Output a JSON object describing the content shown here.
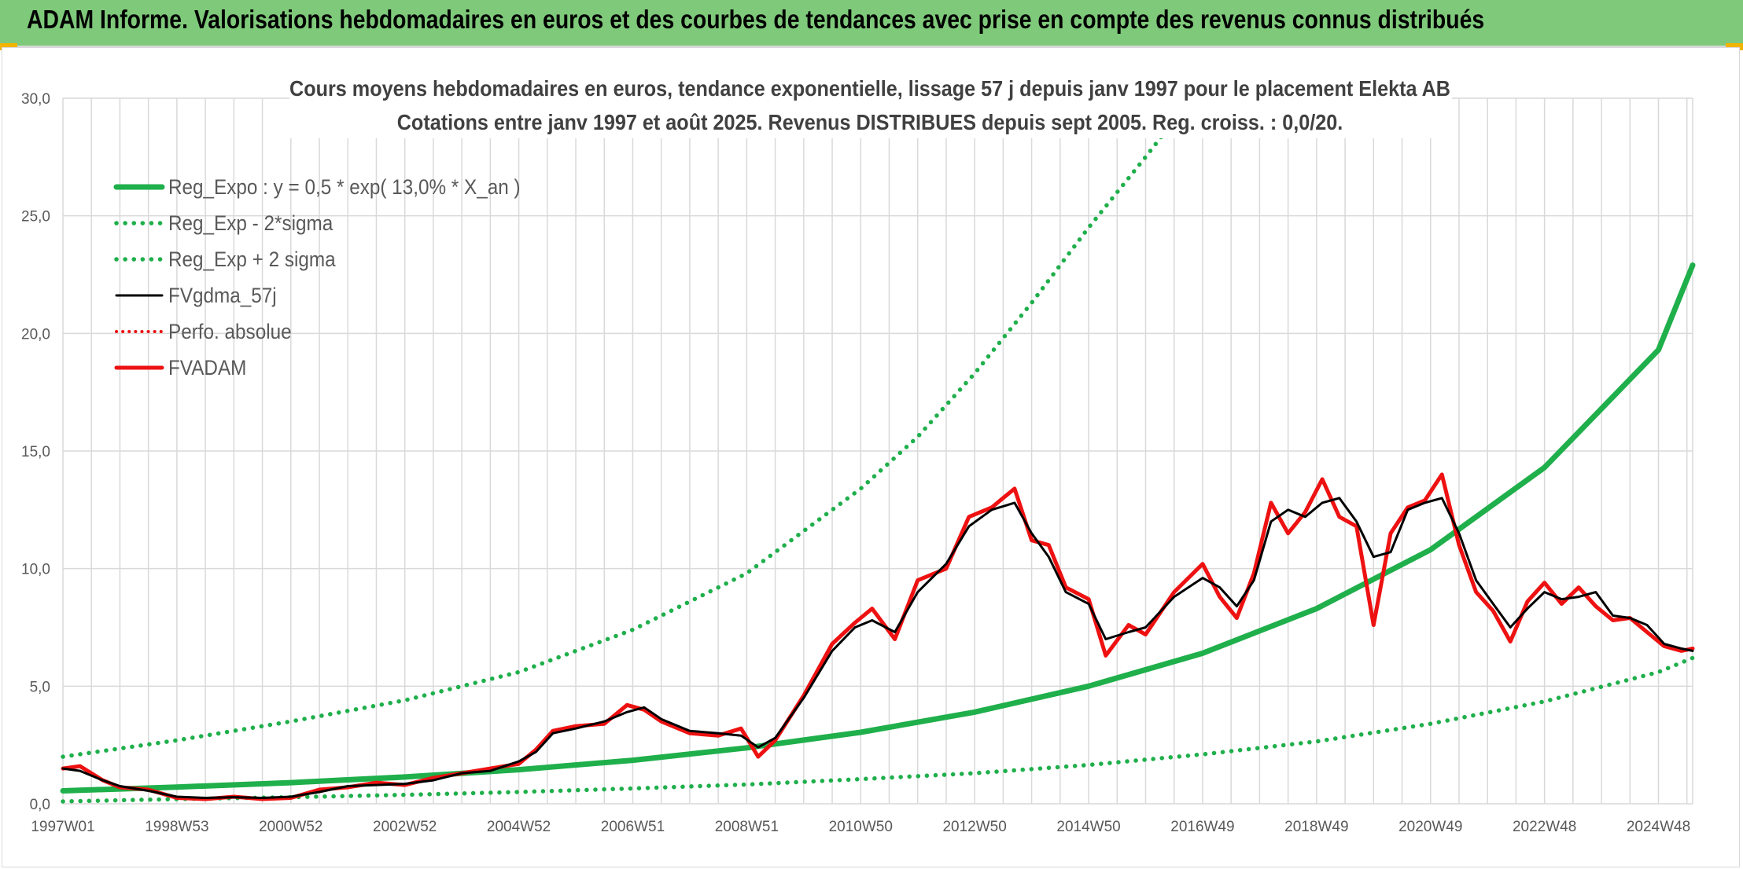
{
  "header": {
    "title": "ADAM Informe. Valorisations hebdomadaires en euros et des courbes de tendances avec prise en compte des revenus connus distribués"
  },
  "colors": {
    "banner": "#7ec97a",
    "reg_green": "#1faf4b",
    "sigma_green": "#1faf4b",
    "gdma_black": "#000000",
    "adam_red": "#ee1111"
  },
  "chart_data": {
    "type": "line",
    "title": "Cours moyens hebdomadaires en euros, tendance exponentielle, lissage 57 j depuis janv 1997 pour le placement Elekta AB",
    "subtitle": "Cotations entre janv 1997 et août 2025. Revenus DISTRIBUES depuis sept 2005. Reg. croiss. : 0,0/20.",
    "xlabel": "",
    "ylabel": "",
    "xlim": [
      1997.0,
      2025.6
    ],
    "ylim": [
      0,
      30
    ],
    "yticks": [
      0,
      5,
      10,
      15,
      20,
      25,
      30
    ],
    "ytick_labels": [
      "0,0",
      "5,0",
      "10,0",
      "15,0",
      "20,0",
      "25,0",
      "30,0"
    ],
    "xtick_labels": [
      "1997W01",
      "1998W53",
      "2000W52",
      "2002W52",
      "2004W52",
      "2006W51",
      "2008W51",
      "2010W50",
      "2012W50",
      "2014W50",
      "2016W49",
      "2018W49",
      "2020W49",
      "2022W48",
      "2024W48"
    ],
    "xtick_years": [
      1997.0,
      1999.0,
      2001.0,
      2003.0,
      2005.0,
      2007.0,
      2009.0,
      2011.0,
      2013.0,
      2015.0,
      2017.0,
      2019.0,
      2021.0,
      2023.0,
      2025.0
    ],
    "grid": true,
    "legend_position": "top-left",
    "series": [
      {
        "name": "Reg_Expo : y = 0,5 * exp( 13,0% *  X_an )",
        "style": "solid-thick",
        "x": [
          1997.0,
          1999.0,
          2001.0,
          2003.0,
          2005.0,
          2007.0,
          2009.0,
          2011.0,
          2013.0,
          2015.0,
          2017.0,
          2019.0,
          2021.0,
          2023.0,
          2025.0,
          2025.6
        ],
        "y": [
          0.55,
          0.71,
          0.9,
          1.14,
          1.45,
          1.85,
          2.38,
          3.04,
          3.9,
          5.0,
          6.4,
          8.3,
          10.8,
          14.3,
          19.3,
          22.9
        ]
      },
      {
        "name": "Reg_Exp - 2*sigma",
        "style": "dotted",
        "x": [
          1997.0,
          1999.0,
          2001.0,
          2003.0,
          2005.0,
          2007.0,
          2009.0,
          2011.0,
          2013.0,
          2015.0,
          2017.0,
          2019.0,
          2021.0,
          2023.0,
          2025.0,
          2025.6
        ],
        "y": [
          0.1,
          0.2,
          0.28,
          0.38,
          0.5,
          0.65,
          0.82,
          1.05,
          1.3,
          1.65,
          2.1,
          2.65,
          3.4,
          4.35,
          5.6,
          6.2
        ]
      },
      {
        "name": "Reg_Exp + 2 sigma",
        "style": "dotted",
        "x": [
          1997.0,
          1999.0,
          2001.0,
          2003.0,
          2005.0,
          2007.0,
          2009.0,
          2011.0,
          2012.0,
          2013.0,
          2014.0,
          2015.0,
          2016.0,
          2016.8
        ],
        "y": [
          2.0,
          2.7,
          3.5,
          4.4,
          5.6,
          7.4,
          9.8,
          13.4,
          15.6,
          18.3,
          21.3,
          24.5,
          27.5,
          30.0
        ]
      },
      {
        "name": "FVgdma_57j",
        "style": "solid-thin",
        "x": [
          1997.0,
          1997.3,
          1997.7,
          1998.0,
          1998.5,
          1999.0,
          1999.5,
          2000.0,
          2000.5,
          2001.0,
          2001.5,
          2002.0,
          2002.5,
          2003.0,
          2003.5,
          2004.0,
          2004.5,
          2005.0,
          2005.3,
          2005.6,
          2006.0,
          2006.5,
          2006.9,
          2007.2,
          2007.5,
          2008.0,
          2008.5,
          2008.9,
          2009.2,
          2009.5,
          2010.0,
          2010.5,
          2010.9,
          2011.2,
          2011.6,
          2012.0,
          2012.5,
          2012.9,
          2013.3,
          2013.7,
          2014.0,
          2014.3,
          2014.6,
          2015.0,
          2015.3,
          2015.7,
          2016.0,
          2016.5,
          2017.0,
          2017.3,
          2017.6,
          2017.9,
          2018.2,
          2018.5,
          2018.8,
          2019.1,
          2019.4,
          2019.7,
          2020.0,
          2020.3,
          2020.6,
          2020.9,
          2021.2,
          2021.5,
          2021.8,
          2022.1,
          2022.4,
          2022.7,
          2023.0,
          2023.3,
          2023.6,
          2023.9,
          2024.2,
          2024.5,
          2024.8,
          2025.1,
          2025.4,
          2025.6
        ],
        "y": [
          1.5,
          1.4,
          1.0,
          0.75,
          0.55,
          0.3,
          0.25,
          0.28,
          0.25,
          0.3,
          0.5,
          0.75,
          0.8,
          0.85,
          1.0,
          1.3,
          1.4,
          1.8,
          2.2,
          3.0,
          3.2,
          3.5,
          3.9,
          4.1,
          3.6,
          3.1,
          3.0,
          2.9,
          2.4,
          2.8,
          4.5,
          6.5,
          7.5,
          7.8,
          7.3,
          9.0,
          10.2,
          11.8,
          12.5,
          12.8,
          11.5,
          10.5,
          9.0,
          8.5,
          7.0,
          7.3,
          7.5,
          8.8,
          9.6,
          9.2,
          8.4,
          9.5,
          12.0,
          12.5,
          12.2,
          12.8,
          13.0,
          12.0,
          10.5,
          10.7,
          12.5,
          12.8,
          13.0,
          11.5,
          9.5,
          8.5,
          7.5,
          8.3,
          9.0,
          8.7,
          8.8,
          9.0,
          8.0,
          7.9,
          7.6,
          6.8,
          6.6,
          6.5
        ]
      },
      {
        "name": "Perfo. absolue",
        "style": "dotted-red",
        "x": [],
        "y": []
      },
      {
        "name": "FVADAM",
        "style": "solid-thick-red",
        "x": [
          1997.0,
          1997.3,
          1997.7,
          1998.0,
          1998.5,
          1999.0,
          1999.5,
          2000.0,
          2000.5,
          2001.0,
          2001.5,
          2002.0,
          2002.5,
          2003.0,
          2003.5,
          2004.0,
          2004.5,
          2005.0,
          2005.3,
          2005.6,
          2006.0,
          2006.5,
          2006.9,
          2007.2,
          2007.5,
          2008.0,
          2008.5,
          2008.9,
          2009.2,
          2009.5,
          2010.0,
          2010.5,
          2010.9,
          2011.2,
          2011.6,
          2012.0,
          2012.5,
          2012.9,
          2013.3,
          2013.7,
          2014.0,
          2014.3,
          2014.6,
          2015.0,
          2015.3,
          2015.7,
          2016.0,
          2016.5,
          2017.0,
          2017.3,
          2017.6,
          2017.9,
          2018.2,
          2018.5,
          2018.8,
          2019.1,
          2019.4,
          2019.7,
          2020.0,
          2020.3,
          2020.6,
          2020.9,
          2021.2,
          2021.5,
          2021.8,
          2022.1,
          2022.4,
          2022.7,
          2023.0,
          2023.3,
          2023.6,
          2023.9,
          2024.2,
          2024.5,
          2024.8,
          2025.1,
          2025.4,
          2025.6
        ],
        "y": [
          1.5,
          1.6,
          1.0,
          0.7,
          0.6,
          0.25,
          0.2,
          0.3,
          0.2,
          0.25,
          0.6,
          0.7,
          0.9,
          0.8,
          1.1,
          1.3,
          1.5,
          1.7,
          2.3,
          3.1,
          3.3,
          3.4,
          4.2,
          4.0,
          3.5,
          3.0,
          2.9,
          3.2,
          2.0,
          2.7,
          4.6,
          6.8,
          7.7,
          8.3,
          7.0,
          9.5,
          10.0,
          12.2,
          12.6,
          13.4,
          11.2,
          11.0,
          9.2,
          8.7,
          6.3,
          7.6,
          7.2,
          9.0,
          10.2,
          8.8,
          7.9,
          9.8,
          12.8,
          11.5,
          12.4,
          13.8,
          12.2,
          11.8,
          7.6,
          11.5,
          12.6,
          12.9,
          14.0,
          11.0,
          9.0,
          8.2,
          6.9,
          8.6,
          9.4,
          8.5,
          9.2,
          8.4,
          7.8,
          7.9,
          7.3,
          6.7,
          6.5,
          6.6
        ]
      }
    ]
  }
}
